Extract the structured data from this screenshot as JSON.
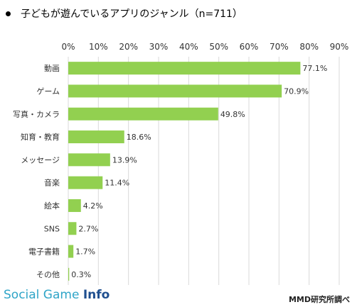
{
  "title": "子どもが遊んでいるアプリのジャンル（n=711）",
  "footer": {
    "brand_part1": "Social Game ",
    "brand_part2": "Info",
    "source": "MMD研究所調べ"
  },
  "colors": {
    "bar": "#92d050",
    "grid": "#d9d9d9"
  },
  "chart_data": {
    "type": "bar",
    "orientation": "horizontal",
    "categories": [
      "動画",
      "ゲーム",
      "写真・カメラ",
      "知育・教育",
      "メッセージ",
      "音楽",
      "絵本",
      "SNS",
      "電子書籍",
      "その他"
    ],
    "values": [
      77.1,
      70.9,
      49.8,
      18.6,
      13.9,
      11.4,
      4.2,
      2.7,
      1.7,
      0.3
    ],
    "value_labels": [
      "77.1%",
      "70.9%",
      "49.8%",
      "18.6%",
      "13.9%",
      "11.4%",
      "4.2%",
      "2.7%",
      "1.7%",
      "0.3%"
    ],
    "ticks": [
      0,
      10,
      20,
      30,
      40,
      50,
      60,
      70,
      80,
      90
    ],
    "tick_labels": [
      "0%",
      "10%",
      "20%",
      "30%",
      "40%",
      "50%",
      "60%",
      "70%",
      "80%",
      "90%"
    ],
    "xlim": [
      0,
      90
    ],
    "grid": true,
    "axis_position": "top"
  }
}
